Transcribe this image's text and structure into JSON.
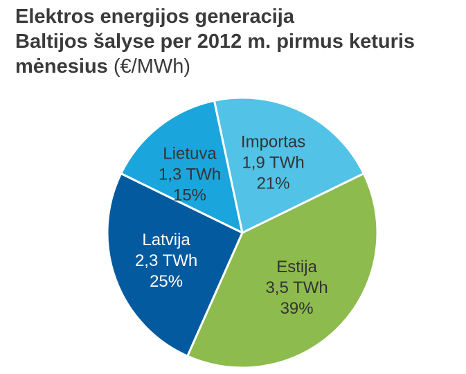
{
  "chart_data": {
    "type": "pie",
    "title_lines": [
      "Elektros energijos generacija",
      "Baltijos šalyse per 2012 m. pirmus keturis",
      "mėnesius"
    ],
    "title_unit": "(€/MWh)",
    "slices": [
      {
        "name": "Estija",
        "value": 3.5,
        "value_label": "3,5 TWh",
        "percent": 39,
        "percent_label": "39%",
        "color": "#8dbb4e",
        "text_color": "#333333"
      },
      {
        "name": "Latvija",
        "value": 2.3,
        "value_label": "2,3 TWh",
        "percent": 25,
        "percent_label": "25%",
        "color": "#045a9e",
        "text_color": "#ffffff"
      },
      {
        "name": "Lietuva",
        "value": 1.3,
        "value_label": "1,3 TWh",
        "percent": 15,
        "percent_label": "15%",
        "color": "#1aa6dc",
        "text_color": "#333333"
      },
      {
        "name": "Importas",
        "value": 1.9,
        "value_label": "1,9 TWh",
        "percent": 21,
        "percent_label": "21%",
        "color": "#52c2e6",
        "text_color": "#333333"
      }
    ]
  }
}
